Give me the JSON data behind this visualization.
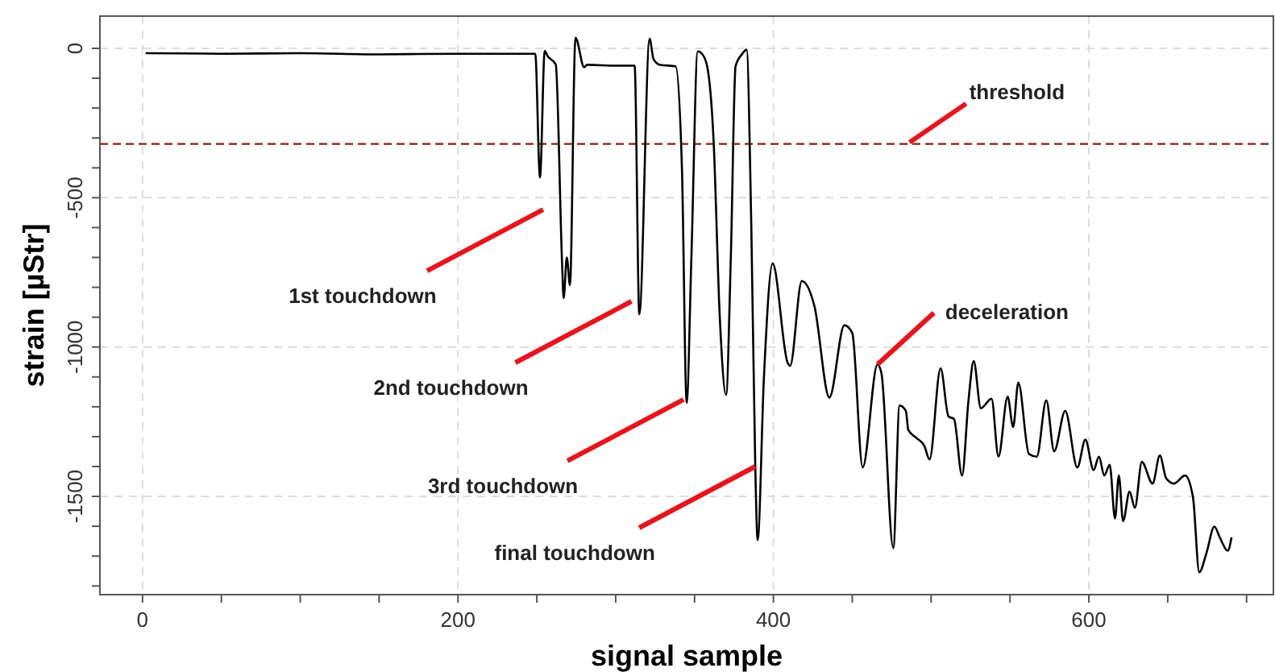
{
  "chart_data": {
    "type": "line",
    "xlabel": "signal sample",
    "ylabel": "strain [µStr]",
    "xlim": [
      -27,
      717
    ],
    "ylim": [
      -1829,
      108
    ],
    "xticks": [
      0,
      {
        "value": 50,
        "label": null
      },
      {
        "value": 100,
        "label": null
      },
      {
        "value": 150,
        "label": null
      },
      200,
      {
        "value": 250,
        "label": null
      },
      {
        "value": 300,
        "label": null
      },
      {
        "value": 350,
        "label": null
      },
      400,
      {
        "value": 450,
        "label": null
      },
      {
        "value": 500,
        "label": null
      },
      {
        "value": 550,
        "label": null
      },
      600,
      {
        "value": 650,
        "label": null
      },
      {
        "value": 700,
        "label": null
      }
    ],
    "yticks": [
      {
        "value": -1800,
        "label": null
      },
      {
        "value": -1700,
        "label": null
      },
      {
        "value": -1600,
        "label": null
      },
      -1500,
      {
        "value": -1400,
        "label": null
      },
      {
        "value": -1300,
        "label": null
      },
      {
        "value": -1200,
        "label": null
      },
      {
        "value": -1100,
        "label": null
      },
      -1000,
      {
        "value": -900,
        "label": null
      },
      {
        "value": -800,
        "label": null
      },
      {
        "value": -700,
        "label": null
      },
      {
        "value": -600,
        "label": null
      },
      -500,
      {
        "value": -400,
        "label": null
      },
      {
        "value": -300,
        "label": null
      },
      {
        "value": -200,
        "label": null
      },
      {
        "value": -100,
        "label": null
      },
      0
    ],
    "grid": true,
    "marker": "none",
    "line_style": "solid",
    "ref_lines": [
      {
        "axis": "y",
        "value": -320,
        "label": "threshold",
        "color": "#8b1a1a",
        "line_style": "dashed"
      }
    ],
    "annotations": [
      {
        "text": "1st touchdown",
        "x": 254,
        "y": -540
      },
      {
        "text": "2nd touchdown",
        "x": 310,
        "y": -847
      },
      {
        "text": "3rd touchdown",
        "x": 343,
        "y": -1176
      },
      {
        "text": "final touchdown",
        "x": 388.5,
        "y": -1400
      },
      {
        "text": "deceleration",
        "x": 466,
        "y": -1058
      }
    ],
    "series": [
      {
        "color": "#000000",
        "x": [
          2,
          50,
          100,
          150,
          200,
          249,
          252,
          255,
          257,
          262,
          266,
          267,
          269,
          271,
          274.5,
          280,
          282,
          300,
          312,
          315,
          321.5,
          324,
          328,
          338,
          342,
          345,
          348,
          352,
          355,
          358,
          362,
          366,
          370,
          373,
          376,
          380,
          383,
          386,
          388.5,
          390,
          394,
          399.5,
          409,
          410.6,
          418,
          426,
          435.5,
          445,
          450,
          456.6,
          466,
          468.5,
          476,
          480,
          484,
          485.5,
          490.6,
          495.7,
          499,
          506,
          511,
          514.5,
          519.6,
          523.7,
          527,
          531.5,
          538.3,
          542.7,
          548.5,
          552,
          555.3,
          562,
          567,
          573,
          578,
          585,
          592.7,
          597.8,
          603,
          606.4,
          609.8,
          613.2,
          616.6,
          619,
          621.7,
          625.8,
          629.2,
          633.6,
          640.4,
          645,
          649,
          654,
          661,
          666,
          670,
          674.5,
          679.6,
          683,
          688,
          690.5
        ],
        "values": [
          -16,
          -18,
          -16,
          -20,
          -18,
          -18,
          -432,
          -9,
          -27,
          -54,
          -718,
          -836,
          -700,
          -793,
          36,
          -63,
          -55,
          -58,
          -58,
          -890,
          32,
          -36,
          -55,
          -60,
          -400,
          -1187,
          -700,
          -10,
          -20,
          -60,
          -300,
          -900,
          -1160,
          -700,
          -60,
          -20,
          -5,
          -600,
          -1400,
          -1646,
          -1100,
          -720,
          -1052,
          -1063,
          -779,
          -863,
          -1169,
          -927,
          -953,
          -1403,
          -1058,
          -1088,
          -1673,
          -1196,
          -1214,
          -1277,
          -1304,
          -1331,
          -1376,
          -1071,
          -1232,
          -1241,
          -1430,
          -1178,
          -1047,
          -1205,
          -1173,
          -1367,
          -1166,
          -1268,
          -1119,
          -1358,
          -1367,
          -1178,
          -1349,
          -1214,
          -1403,
          -1310,
          -1412,
          -1367,
          -1430,
          -1394,
          -1574,
          -1430,
          -1583,
          -1484,
          -1538,
          -1385,
          -1457,
          -1363,
          -1439,
          -1457,
          -1430,
          -1502,
          -1754,
          -1691,
          -1601,
          -1637,
          -1682,
          -1637
        ]
      }
    ]
  }
}
